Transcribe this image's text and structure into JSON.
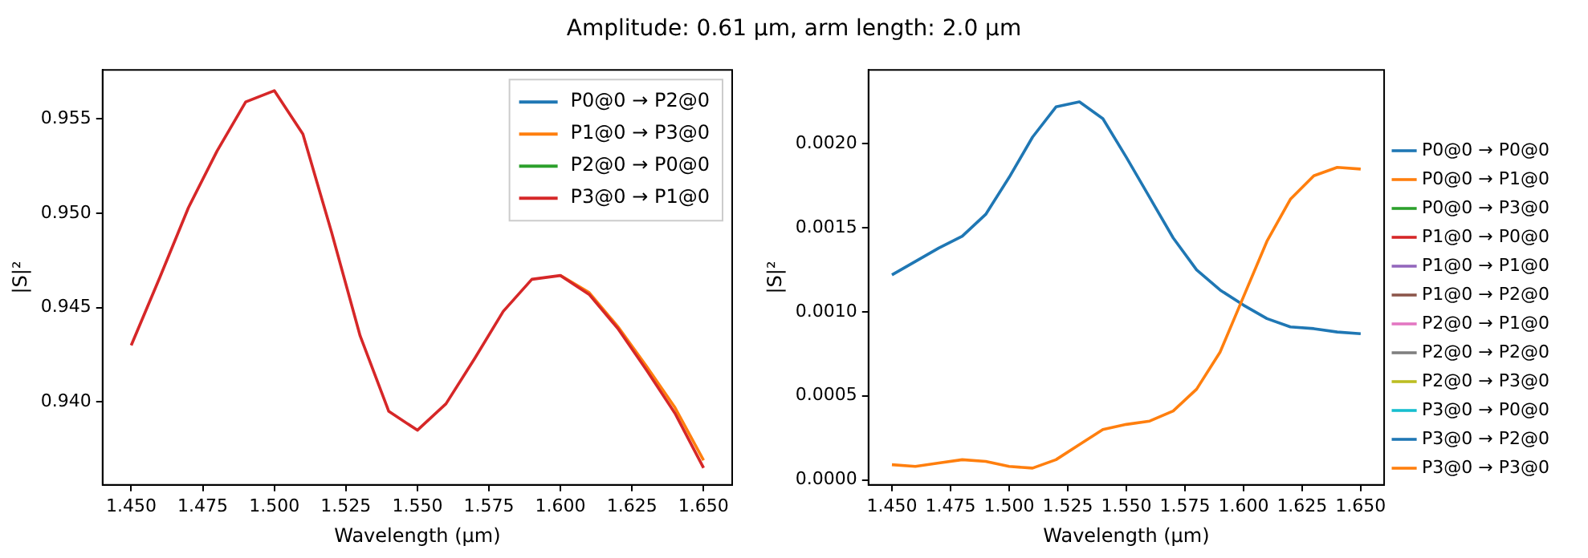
{
  "chart_data": [
    {
      "type": "line",
      "title": "Amplitude: 0.61 µm, arm length: 2.0 µm",
      "xlabel": "Wavelength (µm)",
      "ylabel": "|S|²",
      "legend": "top right",
      "grid": false,
      "x": [
        1.45,
        1.46,
        1.47,
        1.48,
        1.49,
        1.5,
        1.51,
        1.52,
        1.53,
        1.54,
        1.55,
        1.56,
        1.57,
        1.58,
        1.59,
        1.6,
        1.61,
        1.62,
        1.63,
        1.64,
        1.65
      ],
      "xlim": [
        1.44,
        1.66
      ],
      "xticks": [
        {
          "value": 1.45,
          "label": "1.450"
        },
        {
          "value": 1.475,
          "label": "1.475"
        },
        {
          "value": 1.5,
          "label": "1.500"
        },
        {
          "value": 1.525,
          "label": "1.525"
        },
        {
          "value": 1.55,
          "label": "1.550"
        },
        {
          "value": 1.575,
          "label": "1.575"
        },
        {
          "value": 1.6,
          "label": "1.600"
        },
        {
          "value": 1.625,
          "label": "1.625"
        },
        {
          "value": 1.65,
          "label": "1.650"
        }
      ],
      "ylim": [
        0.9356,
        0.9576
      ],
      "yticks": [
        {
          "value": 0.94,
          "label": "0.940"
        },
        {
          "value": 0.945,
          "label": "0.945"
        },
        {
          "value": 0.95,
          "label": "0.950"
        },
        {
          "value": 0.955,
          "label": "0.955"
        }
      ],
      "series": [
        {
          "name": "P0@0 → P2@0",
          "color": "#1f77b4",
          "values": [
            null,
            null,
            null,
            null,
            null,
            null,
            null,
            null,
            null,
            null,
            null,
            null,
            null,
            null,
            null,
            null,
            null,
            null,
            null,
            null,
            null
          ]
        },
        {
          "name": "P1@0 → P3@0",
          "color": "#ff7f0e",
          "values": [
            null,
            null,
            null,
            null,
            null,
            null,
            null,
            null,
            null,
            null,
            null,
            null,
            null,
            null,
            null,
            0.9467,
            0.9458,
            0.944,
            0.9419,
            0.9397,
            0.9369
          ]
        },
        {
          "name": "P2@0 → P0@0",
          "color": "#2ca02c",
          "values": [
            null,
            null,
            null,
            null,
            null,
            null,
            null,
            null,
            null,
            null,
            null,
            null,
            null,
            null,
            null,
            null,
            null,
            null,
            null,
            null,
            null
          ]
        },
        {
          "name": "P3@0 → P1@0",
          "color": "#d62728",
          "values": [
            0.943,
            0.9466,
            0.9503,
            0.9533,
            0.9559,
            0.9565,
            0.9542,
            0.949,
            0.9435,
            0.9395,
            0.9385,
            0.9399,
            0.9423,
            0.9448,
            0.9465,
            0.9467,
            0.9457,
            0.9439,
            0.9417,
            0.9394,
            0.9365
          ]
        }
      ]
    },
    {
      "type": "line",
      "xlabel": "Wavelength (µm)",
      "ylabel": "|S|²",
      "legend": "right",
      "grid": false,
      "x": [
        1.45,
        1.46,
        1.47,
        1.48,
        1.49,
        1.5,
        1.51,
        1.52,
        1.53,
        1.54,
        1.55,
        1.56,
        1.57,
        1.58,
        1.59,
        1.6,
        1.61,
        1.62,
        1.63,
        1.64,
        1.65
      ],
      "xlim": [
        1.44,
        1.66
      ],
      "xticks": [
        {
          "value": 1.45,
          "label": "1.450"
        },
        {
          "value": 1.475,
          "label": "1.475"
        },
        {
          "value": 1.5,
          "label": "1.500"
        },
        {
          "value": 1.525,
          "label": "1.525"
        },
        {
          "value": 1.55,
          "label": "1.550"
        },
        {
          "value": 1.575,
          "label": "1.575"
        },
        {
          "value": 1.6,
          "label": "1.600"
        },
        {
          "value": 1.625,
          "label": "1.625"
        },
        {
          "value": 1.65,
          "label": "1.650"
        }
      ],
      "ylim": [
        -3e-05,
        0.00244
      ],
      "yticks": [
        {
          "value": 0,
          "label": "0.0000"
        },
        {
          "value": 0.0005,
          "label": "0.0005"
        },
        {
          "value": 0.001,
          "label": "0.0010"
        },
        {
          "value": 0.0015,
          "label": "0.0015"
        },
        {
          "value": 0.002,
          "label": "0.0020"
        }
      ],
      "series": [
        {
          "name": "P0@0 → P0@0",
          "color": "#1f77b4",
          "values": [
            null,
            null,
            null,
            null,
            null,
            null,
            null,
            null,
            null,
            null,
            null,
            null,
            null,
            null,
            null,
            null,
            null,
            null,
            null,
            null,
            null
          ]
        },
        {
          "name": "P0@0 → P1@0",
          "color": "#ff7f0e",
          "values": [
            null,
            null,
            null,
            null,
            null,
            null,
            null,
            null,
            null,
            null,
            null,
            null,
            null,
            null,
            null,
            null,
            null,
            null,
            null,
            null,
            null
          ]
        },
        {
          "name": "P0@0 → P3@0",
          "color": "#2ca02c",
          "values": [
            null,
            null,
            null,
            null,
            null,
            null,
            null,
            null,
            null,
            null,
            null,
            null,
            null,
            null,
            null,
            null,
            null,
            null,
            null,
            null,
            null
          ]
        },
        {
          "name": "P1@0 → P0@0",
          "color": "#d62728",
          "values": [
            null,
            null,
            null,
            null,
            null,
            null,
            null,
            null,
            null,
            null,
            null,
            null,
            null,
            null,
            null,
            null,
            null,
            null,
            null,
            null,
            null
          ]
        },
        {
          "name": "P1@0 → P1@0",
          "color": "#9467bd",
          "values": [
            null,
            null,
            null,
            null,
            null,
            null,
            null,
            null,
            null,
            null,
            null,
            null,
            null,
            null,
            null,
            null,
            null,
            null,
            null,
            null,
            null
          ]
        },
        {
          "name": "P1@0 → P2@0",
          "color": "#8c564b",
          "values": [
            null,
            null,
            null,
            null,
            null,
            null,
            null,
            null,
            null,
            null,
            null,
            null,
            null,
            null,
            null,
            null,
            null,
            null,
            null,
            null,
            null
          ]
        },
        {
          "name": "P2@0 → P1@0",
          "color": "#e377c2",
          "values": [
            null,
            null,
            null,
            null,
            null,
            null,
            null,
            null,
            null,
            null,
            null,
            null,
            null,
            null,
            null,
            null,
            null,
            null,
            null,
            null,
            null
          ]
        },
        {
          "name": "P2@0 → P2@0",
          "color": "#7f7f7f",
          "values": [
            null,
            null,
            null,
            null,
            null,
            null,
            null,
            null,
            null,
            null,
            null,
            null,
            null,
            null,
            null,
            null,
            null,
            null,
            null,
            null,
            null
          ]
        },
        {
          "name": "P2@0 → P3@0",
          "color": "#bcbd22",
          "values": [
            null,
            null,
            null,
            null,
            null,
            null,
            null,
            null,
            null,
            null,
            null,
            null,
            null,
            null,
            null,
            null,
            null,
            null,
            null,
            null,
            null
          ]
        },
        {
          "name": "P3@0 → P0@0",
          "color": "#17becf",
          "values": [
            null,
            null,
            null,
            null,
            null,
            null,
            null,
            null,
            null,
            null,
            null,
            null,
            null,
            null,
            null,
            null,
            null,
            null,
            null,
            null,
            null
          ]
        },
        {
          "name": "P3@0 → P2@0",
          "color": "#1f77b4",
          "values": [
            0.00122,
            0.0013,
            0.00138,
            0.00145,
            0.00158,
            0.0018,
            0.00204,
            0.00222,
            0.00225,
            0.00215,
            0.00192,
            0.00168,
            0.00144,
            0.00125,
            0.00113,
            0.00104,
            0.00096,
            0.00091,
            0.0009,
            0.00088,
            0.00087
          ]
        },
        {
          "name": "P3@0 → P3@0",
          "color": "#ff7f0e",
          "values": [
            9e-05,
            8e-05,
            0.0001,
            0.00012,
            0.00011,
            8e-05,
            7e-05,
            0.00012,
            0.00021,
            0.0003,
            0.00033,
            0.00035,
            0.00041,
            0.00054,
            0.00076,
            0.00109,
            0.00142,
            0.00167,
            0.00181,
            0.00186,
            0.00185
          ]
        }
      ]
    }
  ]
}
